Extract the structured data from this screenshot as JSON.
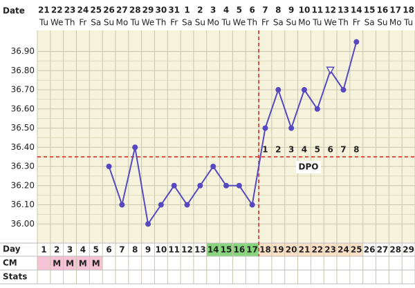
{
  "chart_data": {
    "type": "line",
    "date_label": "Date",
    "dates": [
      21,
      22,
      23,
      24,
      25,
      26,
      27,
      28,
      29,
      30,
      31,
      1,
      2,
      3,
      4,
      5,
      6,
      7,
      8,
      9,
      10,
      11,
      12,
      13,
      14,
      15,
      16,
      17,
      18
    ],
    "weekdays": [
      "Tu",
      "We",
      "Th",
      "Fr",
      "Sa",
      "Su",
      "Mo",
      "Tu",
      "We",
      "Th",
      "Fr",
      "Sa",
      "Su",
      "Mo",
      "Tu",
      "We",
      "Th",
      "Fr",
      "Sa",
      "Su",
      "Mo",
      "Tu",
      "We",
      "Th",
      "Fr",
      "Sa",
      "Su",
      "Mo",
      "Tu"
    ],
    "days": [
      1,
      2,
      3,
      4,
      5,
      6,
      7,
      8,
      9,
      10,
      11,
      12,
      13,
      14,
      15,
      16,
      17,
      18,
      19,
      20,
      21,
      22,
      23,
      24,
      25,
      26,
      27,
      28,
      29
    ],
    "values": [
      null,
      null,
      null,
      null,
      null,
      36.3,
      36.1,
      36.4,
      36.0,
      36.1,
      36.2,
      36.1,
      36.2,
      36.3,
      36.2,
      36.2,
      36.1,
      36.5,
      36.7,
      36.5,
      36.7,
      36.6,
      36.8,
      36.7,
      36.95,
      null,
      null,
      null,
      null
    ],
    "point_shapes": [
      null,
      null,
      null,
      null,
      null,
      "circle",
      "circle",
      "circle",
      "circle",
      "circle",
      "circle",
      "circle",
      "circle",
      "circle",
      "circle",
      "circle",
      "circle",
      "circle",
      "circle",
      "circle",
      "circle",
      "circle",
      "open-triangle",
      "circle",
      "circle",
      null,
      null,
      null,
      null
    ],
    "color": "#5548c0",
    "ylim": [
      35.9,
      37.01
    ],
    "yticks": [
      {
        "value": 36.0,
        "label": "36.00"
      },
      {
        "value": 36.1,
        "label": "36.10"
      },
      {
        "value": 36.2,
        "label": "36.20"
      },
      {
        "value": 36.3,
        "label": "36.30"
      },
      {
        "value": 36.4,
        "label": "36.40"
      },
      {
        "value": 36.5,
        "label": "36.50"
      },
      {
        "value": 36.6,
        "label": "36.60"
      },
      {
        "value": 36.7,
        "label": "36.70"
      },
      {
        "value": 36.8,
        "label": "36.80"
      },
      {
        "value": 36.9,
        "label": "36.90"
      }
    ],
    "grid": true,
    "coverline": 36.35,
    "ovulation_day": 17,
    "reference_color": "#dd4b45",
    "dpo": [
      1,
      2,
      3,
      4,
      5,
      6,
      7,
      8
    ],
    "dpo_label": "DPO",
    "row_labels": {
      "day": "Day",
      "cm": "CM",
      "stats": "Stats"
    },
    "day_cell_colors": [
      null,
      null,
      null,
      null,
      null,
      null,
      null,
      null,
      null,
      null,
      null,
      null,
      null,
      "#86d47c",
      "#86d47c",
      "#86d47c",
      "#86d47c",
      "#fde2c8",
      "#fde2c8",
      "#fde2c8",
      "#fde2c8",
      "#fde2c8",
      "#fde2c8",
      "#fde2c8",
      "#fde2c8",
      null,
      null,
      null,
      null
    ],
    "cm": [
      null,
      "M",
      "M",
      "M",
      "M",
      null,
      null,
      null,
      null,
      null,
      null,
      null,
      null,
      null,
      null,
      null,
      null,
      null,
      null,
      null,
      null,
      null,
      null,
      null,
      null,
      null,
      null,
      null,
      null
    ],
    "cm_cell_colors": [
      "#f6c3d6",
      "#f6c3d6",
      "#f6c3d6",
      "#f6c3d6",
      "#f6c3d6",
      null,
      null,
      null,
      null,
      null,
      null,
      null,
      null,
      null,
      null,
      null,
      null,
      null,
      null,
      null,
      null,
      null,
      null,
      null,
      null,
      null,
      null,
      null,
      null
    ]
  }
}
